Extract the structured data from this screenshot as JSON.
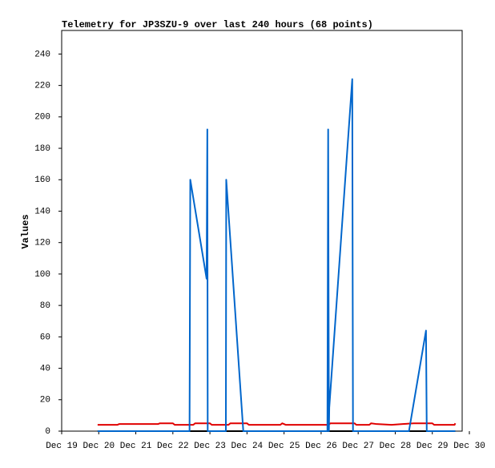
{
  "chart_data": {
    "type": "line",
    "title": "Telemetry for JP3SZU-9 over last 240 hours (68 points)",
    "y_label": "Values",
    "xlim": [
      19,
      30
    ],
    "xticks": [
      {
        "value": 19,
        "label": "Dec 19"
      },
      {
        "value": 20,
        "label": "Dec 20"
      },
      {
        "value": 21,
        "label": "Dec 21"
      },
      {
        "value": 22,
        "label": "Dec 22"
      },
      {
        "value": 23,
        "label": "Dec 23"
      },
      {
        "value": 24,
        "label": "Dec 24"
      },
      {
        "value": 25,
        "label": "Dec 25"
      },
      {
        "value": 26,
        "label": "Dec 26"
      },
      {
        "value": 27,
        "label": "Dec 27"
      },
      {
        "value": 28,
        "label": "Dec 28"
      },
      {
        "value": 29,
        "label": "Dec 29"
      },
      {
        "value": 30,
        "label": "Dec 30"
      }
    ],
    "ylim": [
      0,
      255
    ],
    "yticks": [
      0,
      20,
      40,
      60,
      80,
      100,
      120,
      140,
      160,
      180,
      200,
      220,
      240
    ],
    "grid": false,
    "series": [
      {
        "color": "#000000",
        "x": [
          19.97,
          29.62
        ],
        "values": [
          0,
          0
        ]
      },
      {
        "color": "#e00000",
        "x": [
          19.97,
          20.5,
          20.55,
          21.0,
          21.6,
          21.65,
          22.0,
          22.05,
          22.55,
          22.6,
          23.0,
          23.05,
          23.5,
          23.55,
          24.0,
          24.05,
          24.9,
          24.95,
          25.05,
          26.2,
          26.25,
          26.9,
          26.95,
          27.3,
          27.35,
          27.5,
          27.9,
          28.2,
          28.5,
          29.0,
          29.05,
          29.6,
          29.62
        ],
        "values": [
          4,
          4,
          4.5,
          4.5,
          4.5,
          5,
          5,
          4,
          4,
          5,
          5,
          4,
          4,
          5,
          5,
          4,
          4,
          5,
          4,
          4,
          5,
          5,
          4,
          4,
          5,
          4.5,
          4,
          4.5,
          5,
          5,
          4,
          4,
          5
        ]
      },
      {
        "color": "#0066cc",
        "x": [
          19.97,
          22.45,
          22.46,
          22.47,
          22.91,
          22.93,
          22.94,
          23.43,
          23.44,
          23.9,
          26.17,
          26.18,
          26.19,
          26.21,
          26.22,
          26.84,
          26.86,
          28.37,
          28.83,
          28.85,
          29.62
        ],
        "values": [
          0,
          0,
          80,
          160,
          97,
          192,
          0,
          0,
          160,
          0,
          0,
          97,
          192,
          0,
          15,
          224,
          0,
          0,
          64,
          0,
          0
        ]
      }
    ]
  }
}
